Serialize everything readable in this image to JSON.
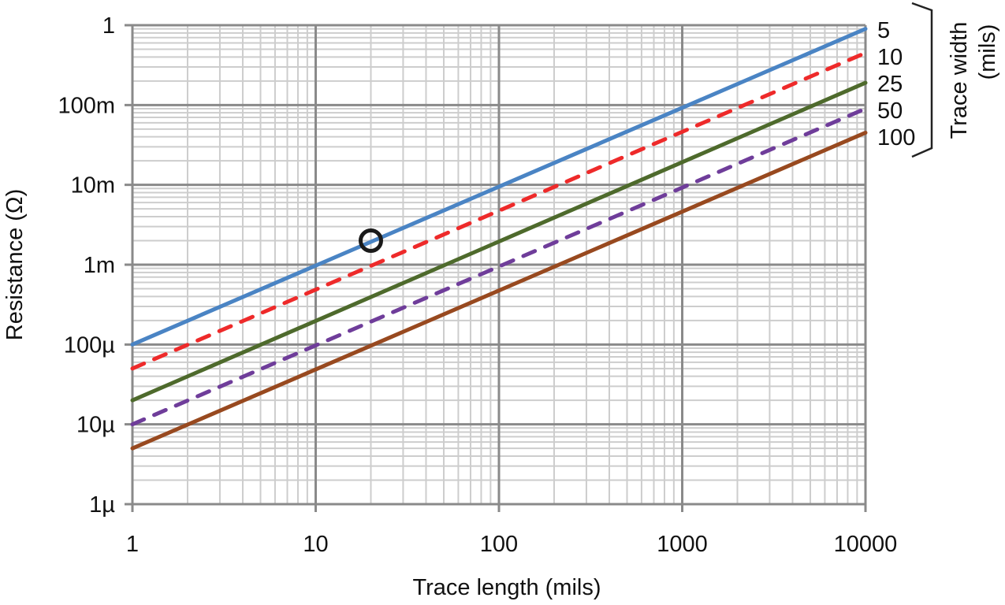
{
  "chart_data": {
    "type": "line",
    "xlabel": "Trace length (mils)",
    "ylabel": "Resistance (Ω)",
    "x_scale": "log",
    "y_scale": "log",
    "xlim": [
      1,
      10000
    ],
    "ylim": [
      1e-06,
      1
    ],
    "x_ticks": [
      "1",
      "10",
      "100",
      "1000",
      "10000"
    ],
    "x_tick_values": [
      1,
      10,
      100,
      1000,
      10000
    ],
    "y_ticks": [
      "1",
      "100m",
      "10m",
      "1m",
      "100µ",
      "10µ",
      "1µ"
    ],
    "y_tick_values": [
      1,
      0.1,
      0.01,
      0.001,
      0.0001,
      1e-05,
      1e-06
    ],
    "grid": true,
    "legend_title": "Trace width (mils)",
    "legend_title_lines": [
      "Trace width",
      "(mils)"
    ],
    "legend_placement": "right",
    "series": [
      {
        "name": "5",
        "color": "#4a84c4",
        "dashed": false,
        "x": [
          1,
          10000
        ],
        "y": [
          0.0001,
          0.9
        ]
      },
      {
        "name": "10",
        "color": "#ee2a2a",
        "dashed": true,
        "x": [
          1,
          10000
        ],
        "y": [
          5e-05,
          0.45
        ]
      },
      {
        "name": "25",
        "color": "#4e6a2c",
        "dashed": false,
        "x": [
          1,
          10000
        ],
        "y": [
          2e-05,
          0.19
        ]
      },
      {
        "name": "50",
        "color": "#6f3d9a",
        "dashed": true,
        "x": [
          1,
          10000
        ],
        "y": [
          1e-05,
          0.09
        ]
      },
      {
        "name": "100",
        "color": "#98491f",
        "dashed": false,
        "x": [
          1,
          10000
        ],
        "y": [
          5e-06,
          0.045
        ]
      }
    ],
    "annotations": [
      {
        "type": "circle-marker",
        "x": 20,
        "y": 0.002,
        "color": "#1a1a1a"
      }
    ]
  }
}
